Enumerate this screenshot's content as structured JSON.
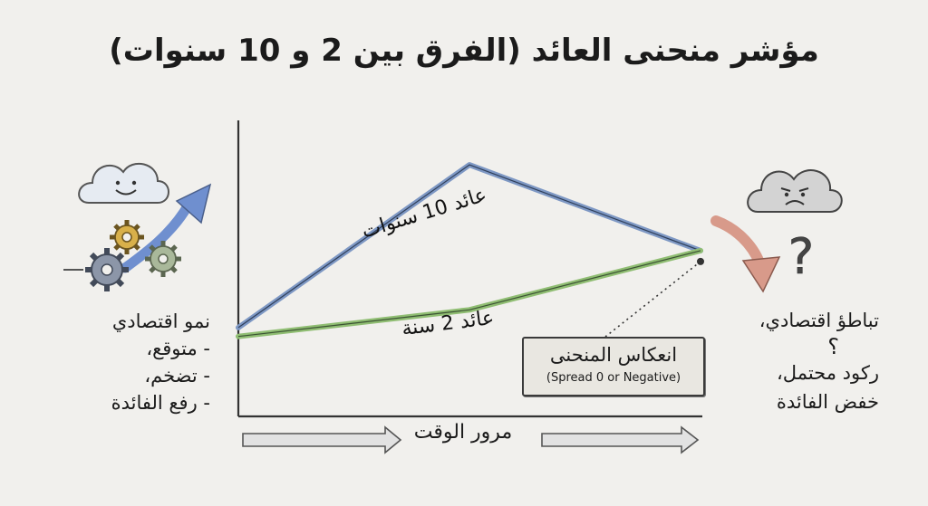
{
  "title": "مؤشر منحنى العائد (الفرق بين 2 و 10 سنوات)",
  "chart_data": {
    "type": "line",
    "x": [
      0,
      1,
      2
    ],
    "series": [
      {
        "name": "عائد 10 سنوات",
        "values": [
          3.0,
          8.5,
          5.6
        ],
        "color": "#7e98c4"
      },
      {
        "name": "عائد 2 سنة",
        "values": [
          2.7,
          3.6,
          5.6
        ],
        "color": "#8fbd72"
      }
    ],
    "xlabel": "مرور الوقت",
    "ylabel": "",
    "ylim": [
      0,
      10
    ],
    "grid": false,
    "axis_ticks": false
  },
  "left_panel": {
    "heading": "نمو اقتصادي",
    "items": [
      "- متوقع،",
      "- تضخم،",
      "- رفع الفائدة"
    ],
    "icons": [
      "happy-cloud-icon",
      "gears-icon",
      "rising-arrow-icon"
    ]
  },
  "right_panel": {
    "lines": [
      "تباطؤ اقتصادي،",
      "؟",
      "ركود محتمل،",
      "خفض الفائدة"
    ],
    "icons": [
      "sad-cloud-icon",
      "question-mark-icon",
      "falling-arrow-icon"
    ]
  },
  "callout": {
    "title": "انعكاس المنحنى",
    "subtitle": "(Spread 0 or Negative)"
  },
  "colors": {
    "background": "#f1f0ed",
    "long_line": "#7e98c4",
    "short_line": "#8fbd72",
    "rising_arrow": "#6f8fcf",
    "falling_arrow": "#d89a8a",
    "gear_gold": "#d8b04a",
    "gear_gray": "#8c96a8",
    "gear_green": "#a9b89a"
  }
}
